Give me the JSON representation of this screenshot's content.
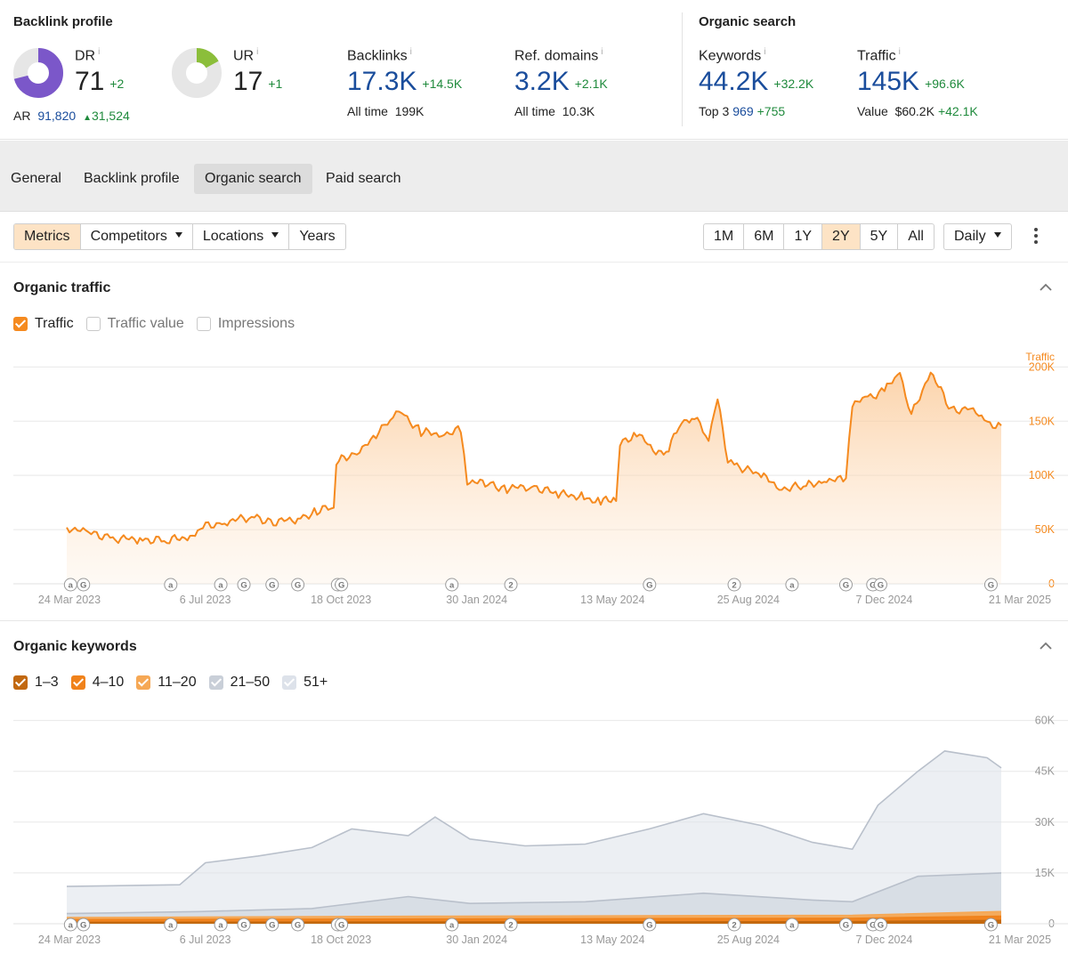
{
  "backlink_profile": {
    "title": "Backlink profile",
    "dr": {
      "label": "DR",
      "info": "i",
      "value": "71",
      "delta": "+2",
      "fill": 0.71,
      "color": "#7b57c9"
    },
    "ur": {
      "label": "UR",
      "info": "i",
      "value": "17",
      "delta": "+1",
      "fill": 0.17,
      "color": "#8bbe3a"
    },
    "ar": {
      "label": "AR",
      "value": "91,820",
      "delta": "31,524"
    },
    "backlinks": {
      "label": "Backlinks",
      "info": "i",
      "value": "17.3K",
      "delta": "+14.5K",
      "sub_label": "All time",
      "sub_value": "199K"
    },
    "ref_domains": {
      "label": "Ref. domains",
      "info": "i",
      "value": "3.2K",
      "delta": "+2.1K",
      "sub_label": "All time",
      "sub_value": "10.3K"
    }
  },
  "organic_search": {
    "title": "Organic search",
    "keywords": {
      "label": "Keywords",
      "info": "i",
      "value": "44.2K",
      "delta": "+32.2K",
      "sub_label": "Top 3",
      "sub_value": "969",
      "sub_delta": "+755"
    },
    "traffic": {
      "label": "Traffic",
      "info": "i",
      "value": "145K",
      "delta": "+96.6K",
      "sub_label": "Value",
      "sub_value": "$60.2K",
      "sub_delta": "+42.1K"
    }
  },
  "tabs": [
    {
      "label": "General",
      "active": false
    },
    {
      "label": "Backlink profile",
      "active": false
    },
    {
      "label": "Organic search",
      "active": true
    },
    {
      "label": "Paid search",
      "active": false
    }
  ],
  "toolbar": {
    "left": {
      "metrics": "Metrics",
      "competitors": "Competitors",
      "locations": "Locations",
      "years": "Years"
    },
    "ranges": [
      "1M",
      "6M",
      "1Y",
      "2Y",
      "5Y",
      "All"
    ],
    "active_range": "2Y",
    "interval": "Daily"
  },
  "colors": {
    "accent": "#f58a1f",
    "accent_fill": "#fde3c5",
    "blue_value": "#1a4d9c",
    "green_delta": "#1f8a3c"
  },
  "organic_traffic": {
    "title": "Organic traffic",
    "legend": [
      {
        "label": "Traffic",
        "checked": true
      },
      {
        "label": "Traffic value",
        "checked": false
      },
      {
        "label": "Impressions",
        "checked": false
      }
    ]
  },
  "organic_keywords": {
    "title": "Organic keywords",
    "legend": [
      {
        "label": "1–3",
        "checked": true,
        "color": "#c2680f"
      },
      {
        "label": "4–10",
        "checked": true,
        "color": "#f0821b"
      },
      {
        "label": "11–20",
        "checked": true,
        "color": "#f6a855"
      },
      {
        "label": "21–50",
        "checked": true,
        "color": "#c9cfd8"
      },
      {
        "label": "51+",
        "checked": true,
        "color": "#dde2ea"
      }
    ]
  },
  "chart_data": [
    {
      "type": "area",
      "title": "Organic traffic",
      "series_axis_label": "Traffic",
      "x_tick_labels": [
        "24 Mar 2023",
        "6 Jul 2023",
        "18 Oct 2023",
        "30 Jan 2024",
        "13 May 2024",
        "25 Aug 2024",
        "7 Dec 2024",
        "21 Mar 2025"
      ],
      "x_range": [
        "2023-03-24",
        "2025-03-21"
      ],
      "y_ticks": [
        "0",
        "50K",
        "100K",
        "150K",
        "200K"
      ],
      "ylim": [
        0,
        220000
      ],
      "grid": true,
      "series": [
        {
          "name": "Traffic",
          "color": "#f58a1f",
          "x": [
            "2023-03-24",
            "2023-04-10",
            "2023-05-01",
            "2023-05-20",
            "2023-06-10",
            "2023-06-30",
            "2023-07-06",
            "2023-07-25",
            "2023-08-15",
            "2023-09-01",
            "2023-09-20",
            "2023-10-05",
            "2023-10-18",
            "2023-10-20",
            "2023-11-05",
            "2023-11-20",
            "2023-12-01",
            "2023-12-10",
            "2023-12-25",
            "2024-01-10",
            "2024-01-25",
            "2024-01-30",
            "2024-02-15",
            "2024-03-01",
            "2024-03-20",
            "2024-04-10",
            "2024-04-30",
            "2024-05-13",
            "2024-05-25",
            "2024-05-28",
            "2024-06-10",
            "2024-06-25",
            "2024-07-05",
            "2024-07-15",
            "2024-07-25",
            "2024-08-05",
            "2024-08-12",
            "2024-08-20",
            "2024-08-25",
            "2024-09-15",
            "2024-10-01",
            "2024-10-20",
            "2024-11-05",
            "2024-11-20",
            "2024-11-25",
            "2024-12-07",
            "2024-12-20",
            "2025-01-01",
            "2025-01-10",
            "2025-01-25",
            "2025-02-10",
            "2025-02-25",
            "2025-03-10",
            "2025-03-21"
          ],
          "y": [
            52000,
            47000,
            42000,
            41000,
            40000,
            44000,
            52000,
            57000,
            62000,
            57000,
            60000,
            67000,
            71000,
            112000,
            122000,
            135000,
            155000,
            158000,
            140000,
            138000,
            142000,
            95000,
            92000,
            88000,
            90000,
            83000,
            80000,
            75000,
            80000,
            128000,
            140000,
            120000,
            125000,
            150000,
            153000,
            135000,
            170000,
            115000,
            110000,
            100000,
            88000,
            90000,
            96000,
            96000,
            165000,
            172000,
            178000,
            195000,
            155000,
            196000,
            160000,
            162000,
            148000,
            146000
          ]
        }
      ]
    },
    {
      "type": "area",
      "title": "Organic keywords",
      "x_tick_labels": [
        "24 Mar 2023",
        "6 Jul 2023",
        "18 Oct 2023",
        "30 Jan 2024",
        "13 May 2024",
        "25 Aug 2024",
        "7 Dec 2024",
        "21 Mar 2025"
      ],
      "x_range": [
        "2023-03-24",
        "2025-03-21"
      ],
      "y_ticks": [
        "0",
        "15K",
        "30K",
        "45K",
        "60K"
      ],
      "ylim": [
        0,
        62000
      ],
      "stacked": false,
      "grid": true,
      "series": [
        {
          "name": "51+",
          "color": "#dde2ea",
          "x": [
            "2023-03-24",
            "2023-06-20",
            "2023-07-10",
            "2023-08-20",
            "2023-10-01",
            "2023-11-01",
            "2023-12-15",
            "2024-01-05",
            "2024-02-01",
            "2024-03-15",
            "2024-05-01",
            "2024-06-20",
            "2024-08-01",
            "2024-09-15",
            "2024-10-25",
            "2024-11-25",
            "2024-12-15",
            "2025-01-15",
            "2025-02-05",
            "2025-03-10",
            "2025-03-21"
          ],
          "y": [
            11000,
            11500,
            18000,
            20000,
            22500,
            28000,
            26000,
            31500,
            25000,
            23000,
            23500,
            28000,
            32500,
            29000,
            24000,
            22000,
            35000,
            45000,
            51000,
            49000,
            46000
          ]
        },
        {
          "name": "21–50",
          "color": "#c9cfd8",
          "x": [
            "2023-03-24",
            "2023-07-06",
            "2023-10-01",
            "2023-12-15",
            "2024-02-01",
            "2024-05-01",
            "2024-08-01",
            "2024-10-25",
            "2024-11-25",
            "2025-01-15",
            "2025-03-21"
          ],
          "y": [
            3000,
            3600,
            4500,
            8000,
            6000,
            6500,
            9000,
            7000,
            6500,
            14000,
            15000
          ]
        },
        {
          "name": "11–20",
          "color": "#f6a855",
          "x": [
            "2023-03-24",
            "2024-01-01",
            "2024-11-25",
            "2025-03-21"
          ],
          "y": [
            1800,
            2200,
            2500,
            3600
          ]
        },
        {
          "name": "4–10",
          "color": "#f0821b",
          "x": [
            "2023-03-24",
            "2024-01-01",
            "2024-11-25",
            "2025-03-21"
          ],
          "y": [
            1200,
            1400,
            1600,
            2200
          ]
        },
        {
          "name": "1–3",
          "color": "#c2680f",
          "x": [
            "2023-03-24",
            "2024-01-01",
            "2024-11-25",
            "2025-03-21"
          ],
          "y": [
            400,
            500,
            600,
            969
          ]
        }
      ]
    }
  ],
  "annotation_markers": [
    {
      "date": "2023-03-27",
      "glyph": "a"
    },
    {
      "date": "2023-04-06",
      "glyph": "G"
    },
    {
      "date": "2023-06-13",
      "glyph": "a"
    },
    {
      "date": "2023-07-22",
      "glyph": "a"
    },
    {
      "date": "2023-08-09",
      "glyph": "G"
    },
    {
      "date": "2023-08-31",
      "glyph": "G"
    },
    {
      "date": "2023-09-20",
      "glyph": "G"
    },
    {
      "date": "2023-10-21",
      "glyph": "G"
    },
    {
      "date": "2023-10-24",
      "glyph": "G"
    },
    {
      "date": "2024-01-18",
      "glyph": "a"
    },
    {
      "date": "2024-03-04",
      "glyph": "2"
    },
    {
      "date": "2024-06-20",
      "glyph": "G"
    },
    {
      "date": "2024-08-25",
      "glyph": "2"
    },
    {
      "date": "2024-10-09",
      "glyph": "a"
    },
    {
      "date": "2024-11-20",
      "glyph": "G"
    },
    {
      "date": "2024-12-11",
      "glyph": "G"
    },
    {
      "date": "2024-12-17",
      "glyph": "G"
    },
    {
      "date": "2025-03-13",
      "glyph": "G"
    }
  ]
}
